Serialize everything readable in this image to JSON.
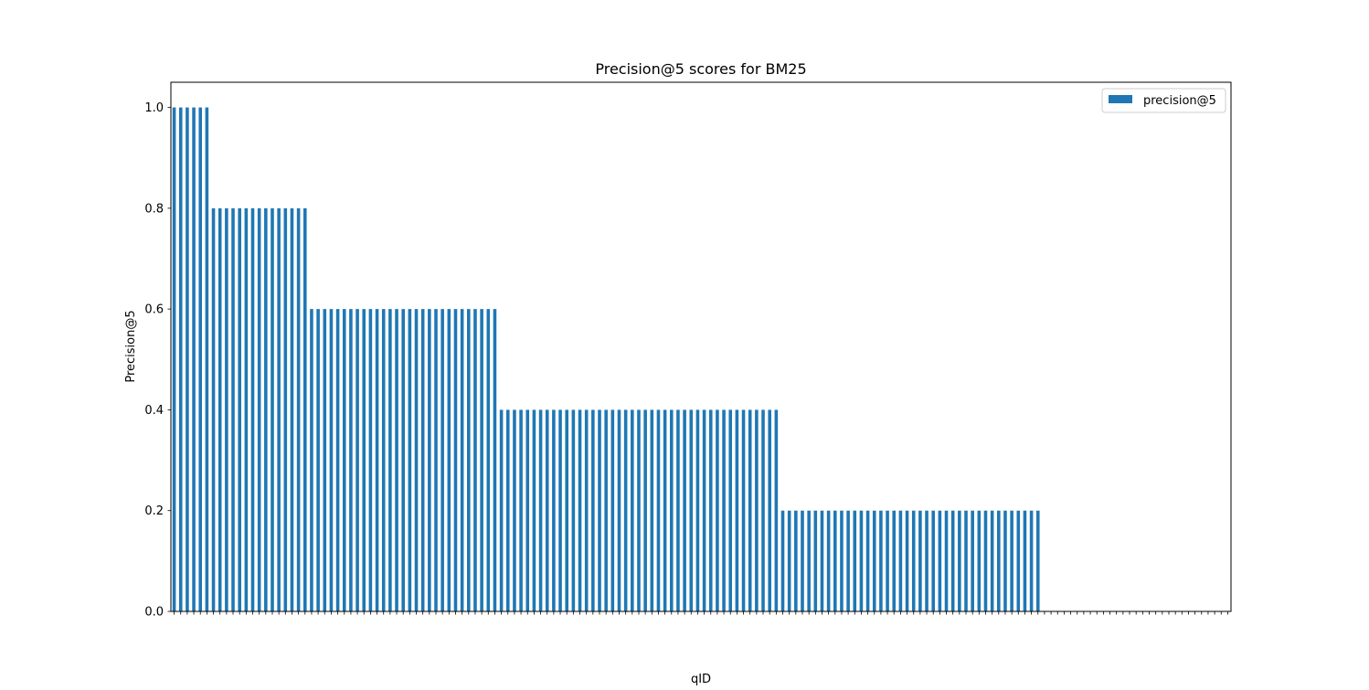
{
  "chart_data": {
    "type": "bar",
    "title": "Precision@5 scores for BM25",
    "xlabel": "qID",
    "ylabel": "Precision@5",
    "ylim": [
      0,
      1.05
    ],
    "yticks": [
      "0.0",
      "0.2",
      "0.4",
      "0.6",
      "0.8",
      "1.0"
    ],
    "legend": {
      "placement": "top-right",
      "entries": [
        "precision@5"
      ]
    },
    "grid": false,
    "bar_color": "#1f77b4",
    "series": [
      {
        "name": "precision@5",
        "groups": [
          {
            "value": 1.0,
            "count": 6
          },
          {
            "value": 0.8,
            "count": 15
          },
          {
            "value": 0.6,
            "count": 29
          },
          {
            "value": 0.4,
            "count": 43
          },
          {
            "value": 0.2,
            "count": 40
          },
          {
            "value": 0.0,
            "count": 29
          }
        ]
      }
    ]
  }
}
